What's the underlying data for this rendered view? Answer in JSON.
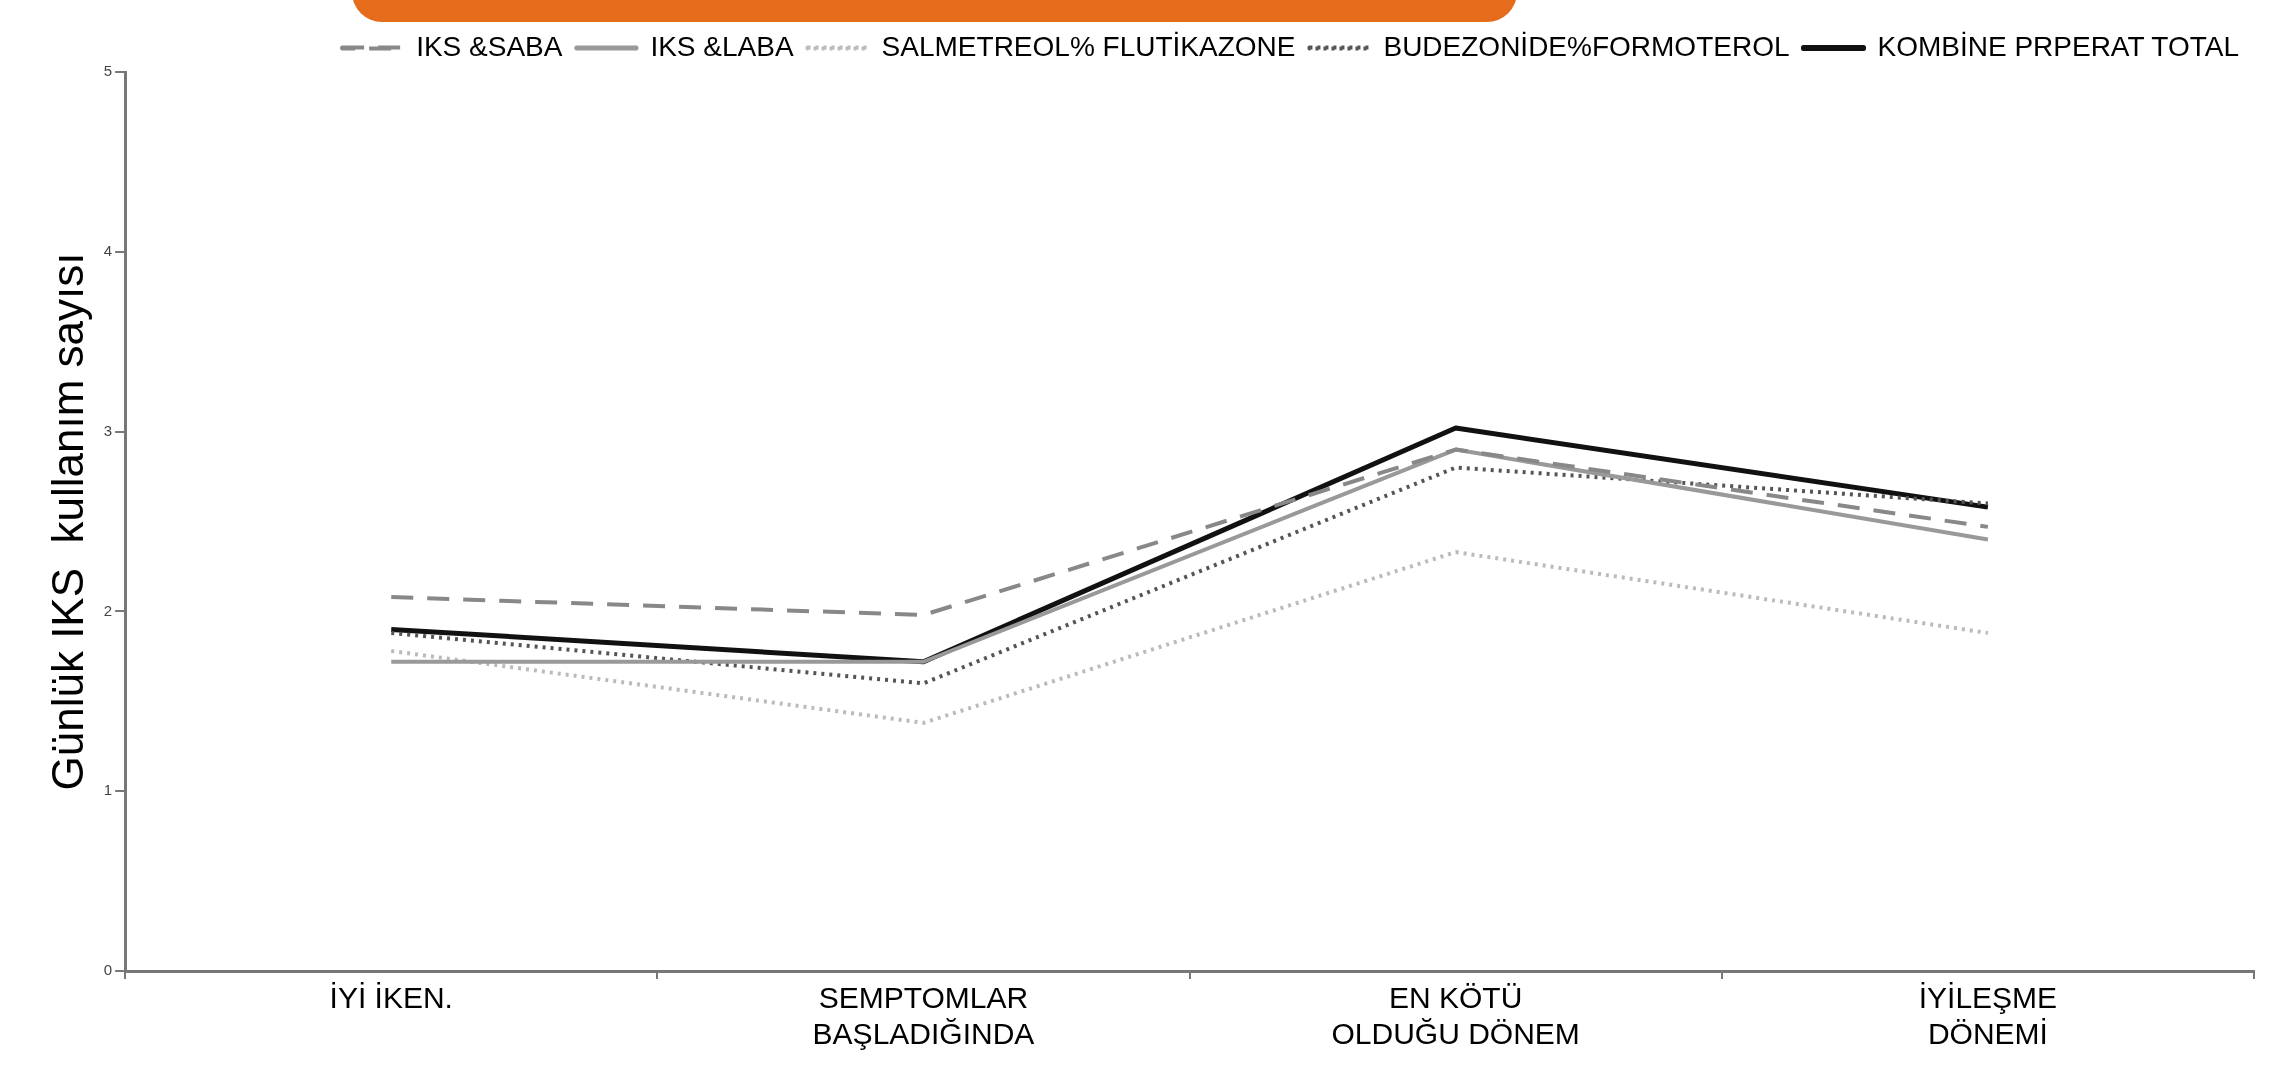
{
  "chart_data": {
    "type": "line",
    "ylabel": "Günlük IKS  kullanım sayısı",
    "categories": [
      "İYİ İKEN.",
      "SEMPTOMLAR\nBAŞLADIĞINDA",
      "EN KÖTÜ\nOLDUĞU DÖNEM",
      "İYİLEŞME\nDÖNEMİ"
    ],
    "series": [
      {
        "name": "IKS &SABA",
        "color": "#888888",
        "line_style": "dashed",
        "values": [
          2.08,
          1.98,
          2.9,
          2.47
        ]
      },
      {
        "name": "IKS &LABA",
        "color": "#999999",
        "line_style": "solid",
        "values": [
          1.72,
          1.72,
          2.9,
          2.4
        ]
      },
      {
        "name": "SALMETREOL% FLUTİKAZONE",
        "color": "#bbbbbb",
        "line_style": "dotted",
        "values": [
          1.78,
          1.38,
          2.33,
          1.88
        ]
      },
      {
        "name": "BUDEZONİDE%FORMOTEROL",
        "color": "#555555",
        "line_style": "dotted",
        "values": [
          1.88,
          1.6,
          2.8,
          2.6
        ]
      },
      {
        "name": "KOMBİNE PRPERAT TOTAL",
        "color": "#111111",
        "line_style": "solid",
        "values": [
          1.9,
          1.72,
          3.02,
          2.58
        ]
      }
    ],
    "ylim": [
      0,
      5
    ],
    "yticks": [
      0,
      1,
      2,
      3,
      4,
      5
    ],
    "grid": false,
    "legend": "top right",
    "marker": "none"
  }
}
